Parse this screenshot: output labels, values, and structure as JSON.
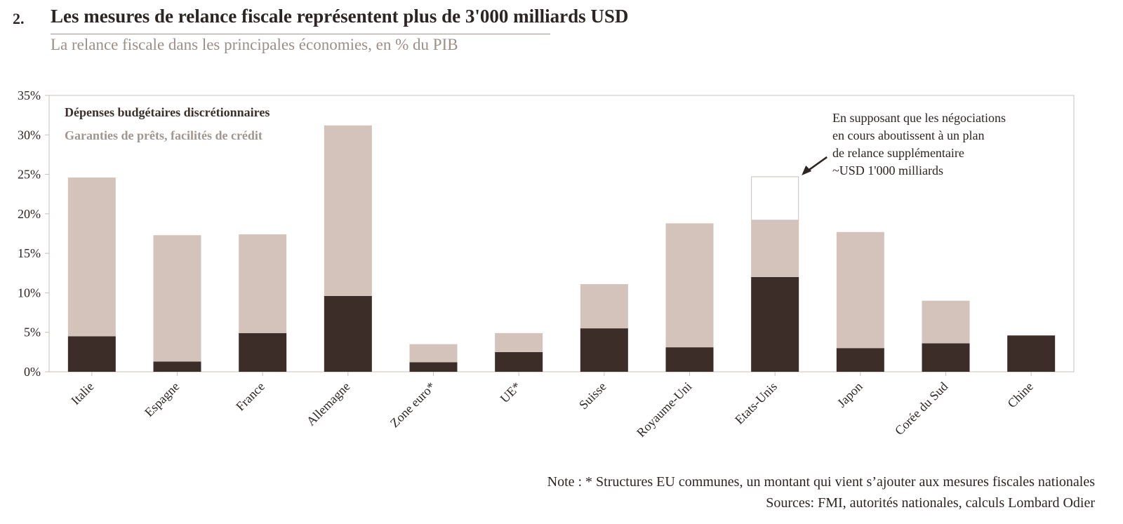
{
  "header": {
    "number": "2.",
    "title": "Les mesures de relance fiscale représentent plus de 3'000 milliards USD",
    "subtitle": "La relance fiscale dans les principales économies, en % du PIB"
  },
  "annotation": {
    "lines": [
      "En supposant que les négociations",
      "en cours aboutissent à un plan",
      "de relance supplémentaire",
      "~USD 1'000 milliards"
    ]
  },
  "footer": {
    "note": "Note : * Structures EU communes, un montant qui vient s’ajouter aux mesures fiscales nationales",
    "sources": "Sources: FMI, autorités nationales, calculs Lombard Odier"
  },
  "colors": {
    "discretionary": "#3d2d29",
    "guarantees": "#d3c3bb",
    "additional_outline": "#c9bfb9",
    "axis": "#c8c0bb"
  },
  "chart_data": {
    "type": "bar",
    "stacked": true,
    "categories": [
      "Italie",
      "Espagne",
      "France",
      "Allemagne",
      "Zone euro*",
      "UE*",
      "Suisse",
      "Royaume-Uni",
      "Etats-Unis",
      "Japon",
      "Corée du Sud",
      "Chine"
    ],
    "series": [
      {
        "name": "Dépenses budgétaires discrétionnaires",
        "values": [
          4.5,
          1.3,
          4.9,
          9.6,
          1.2,
          2.5,
          5.5,
          3.1,
          12.0,
          3.0,
          3.6,
          4.6
        ]
      },
      {
        "name": "Garanties de prêts, facilités de crédit",
        "values": [
          20.1,
          16.0,
          12.5,
          21.6,
          2.3,
          2.4,
          5.6,
          15.7,
          7.2,
          14.7,
          5.4,
          0
        ]
      },
      {
        "name": "",
        "values": [
          0,
          0,
          0,
          0,
          0,
          0,
          0,
          0,
          5.5,
          0,
          0,
          0
        ]
      }
    ],
    "yticks": [
      "0%",
      "5%",
      "10%",
      "15%",
      "20%",
      "25%",
      "30%",
      "35%"
    ],
    "ylim": [
      0,
      35
    ],
    "xlabel": "",
    "ylabel": "",
    "legend_position": "top-left",
    "grid": false
  }
}
